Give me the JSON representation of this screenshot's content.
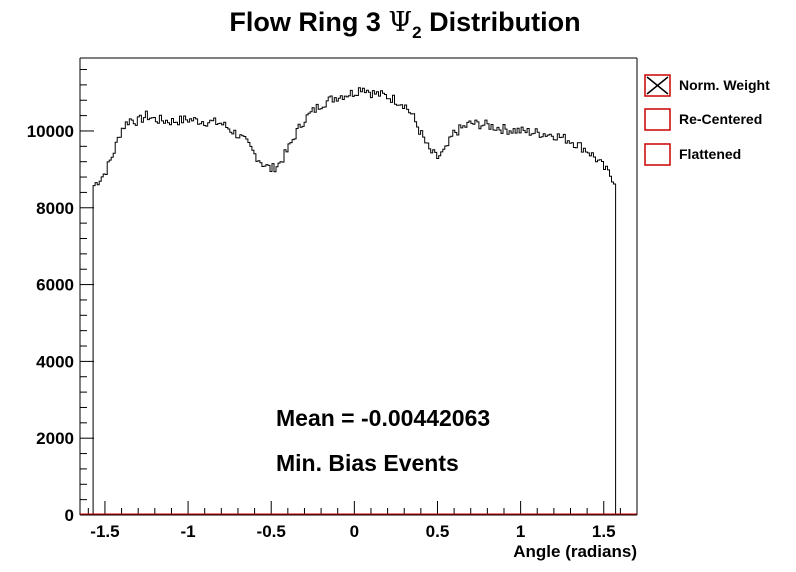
{
  "chart_data": {
    "type": "line",
    "title_main": "Flow Ring 3 ",
    "title_symbol": "Ψ",
    "title_subscript": "2",
    "title_tail": " Distribution",
    "xlabel": "Angle (radians)",
    "ylabel": "",
    "xlim": [
      -1.65,
      1.7
    ],
    "ylim": [
      0,
      11900
    ],
    "x_ticks": [
      -1.5,
      -1,
      -0.5,
      0,
      0.5,
      1,
      1.5
    ],
    "x_tick_labels": [
      "-1.5",
      "-1",
      "-0.5",
      "0",
      "0.5",
      "1",
      "1.5"
    ],
    "y_ticks": [
      0,
      2000,
      4000,
      6000,
      8000,
      10000
    ],
    "y_tick_labels": [
      "0",
      "2000",
      "4000",
      "6000",
      "8000",
      "10000"
    ],
    "grid": false,
    "legend_position": "right",
    "annotations": [
      "Mean = -0.00442063",
      "Min. Bias Events"
    ],
    "series": [
      {
        "name": "Norm. Weight",
        "color": "#000000",
        "x": [
          -1.571,
          -1.5,
          -1.45,
          -1.4,
          -1.35,
          -1.3,
          -1.25,
          -1.2,
          -1.1,
          -1.0,
          -0.9,
          -0.8,
          -0.7,
          -0.65,
          -0.6,
          -0.55,
          -0.5,
          -0.45,
          -0.4,
          -0.35,
          -0.3,
          -0.2,
          -0.1,
          0.0,
          0.05,
          0.1,
          0.2,
          0.3,
          0.35,
          0.4,
          0.45,
          0.5,
          0.55,
          0.6,
          0.7,
          0.8,
          0.9,
          1.0,
          1.1,
          1.2,
          1.3,
          1.4,
          1.45,
          1.5,
          1.55,
          1.571
        ],
        "values": [
          8550,
          8900,
          9400,
          10050,
          10300,
          10250,
          10400,
          10300,
          10250,
          10300,
          10250,
          10200,
          9900,
          9700,
          9400,
          9150,
          9000,
          9150,
          9500,
          9950,
          10300,
          10700,
          10900,
          11000,
          11150,
          11000,
          10900,
          10700,
          10400,
          9950,
          9500,
          9300,
          9500,
          9950,
          10200,
          10150,
          10050,
          10000,
          9950,
          9900,
          9750,
          9500,
          9300,
          9050,
          8800,
          8650
        ]
      },
      {
        "name": "Re-Centered",
        "color": "#cc0000",
        "x": [],
        "values": []
      },
      {
        "name": "Flattened",
        "color": "#cc0000",
        "x": [],
        "values": []
      }
    ]
  },
  "legend": {
    "items": [
      {
        "label": "Norm. Weight",
        "marker": "x-box",
        "color": "#000000",
        "border": "#cc0000"
      },
      {
        "label": "Re-Centered",
        "marker": "box",
        "color": "#cc0000",
        "border": "#cc0000"
      },
      {
        "label": "Flattened",
        "marker": "box",
        "color": "#cc0000",
        "border": "#cc0000"
      }
    ]
  }
}
